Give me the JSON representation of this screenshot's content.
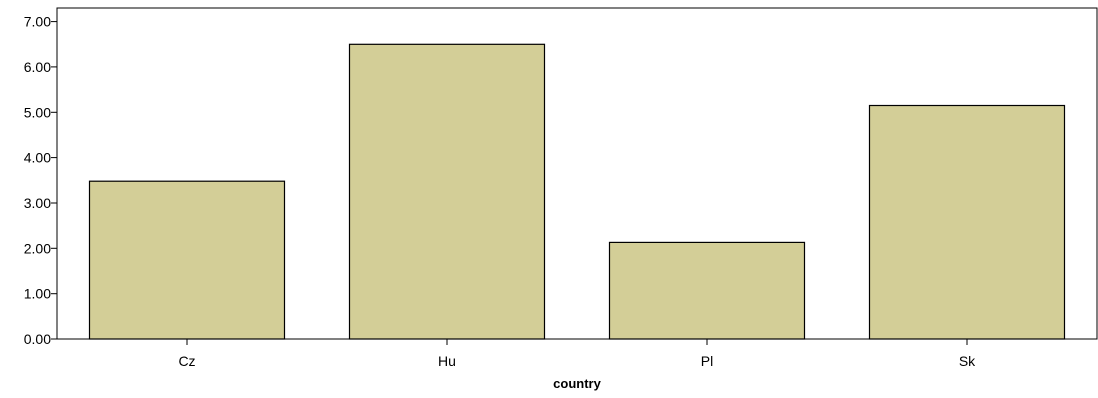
{
  "chart_data": {
    "type": "bar",
    "title": "",
    "xlabel": "country",
    "ylabel": "",
    "categories": [
      "Cz",
      "Hu",
      "Pl",
      "Sk"
    ],
    "values": [
      3.48,
      6.5,
      2.13,
      5.15
    ],
    "ylim": [
      0,
      7.3
    ],
    "yticks": [
      0,
      1,
      2,
      3,
      4,
      5,
      6,
      7
    ],
    "ytick_labels": [
      "0.00",
      "1.00",
      "2.00",
      "3.00",
      "4.00",
      "5.00",
      "6.00",
      "7.00"
    ],
    "grid": false,
    "legend": "none",
    "colors": {
      "bar_fill": "#d3ce97",
      "bar_stroke": "#000000",
      "axis": "#000000"
    }
  }
}
